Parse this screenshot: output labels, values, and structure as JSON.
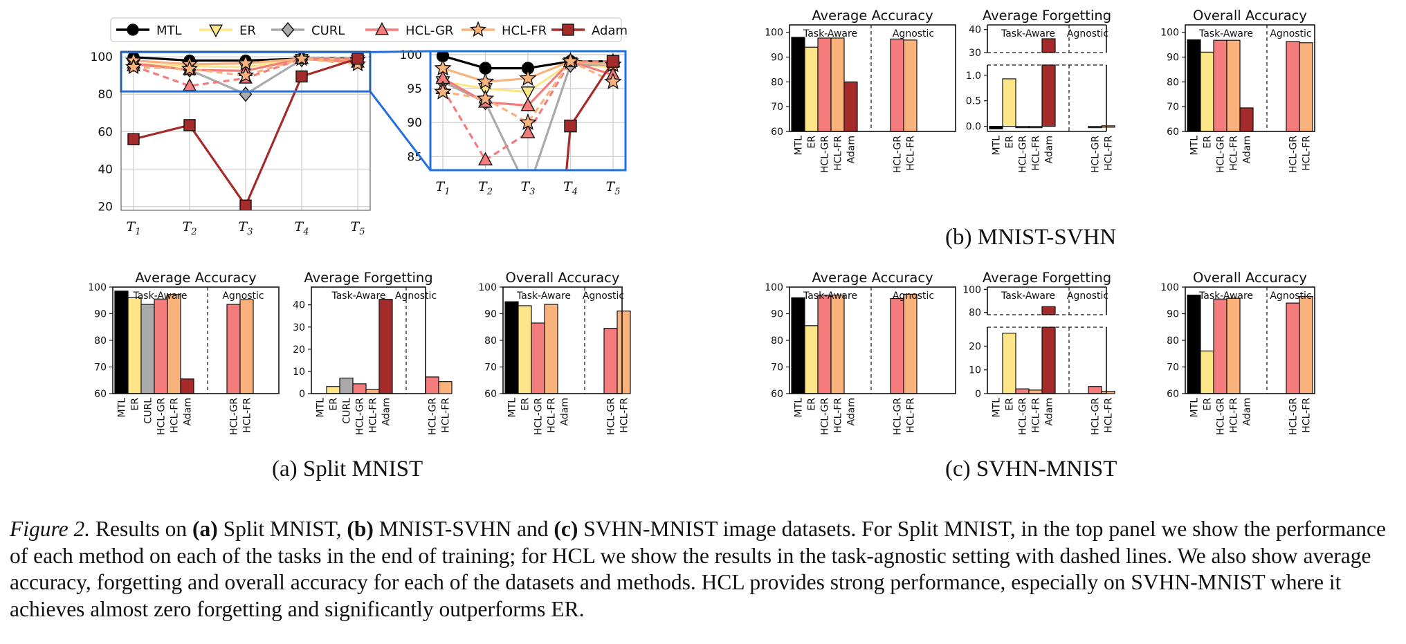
{
  "caption": {
    "fig_label": "Figure 2.",
    "s1": " Results on ",
    "a": "(a)",
    "s2": " Split MNIST, ",
    "b": "(b)",
    "s3": " MNIST-SVHN and ",
    "c": "(c)",
    "s4": " SVHN-MNIST image datasets. For Split MNIST, in the top panel we show the performance of each method on each of the tasks in the end of training; for HCL we show the results in the task-agnostic setting with dashed lines. We also show average accuracy, forgetting and overall accuracy for each of the datasets and methods. HCL provides strong performance, especially on SVHN-MNIST where it achieves almost zero forgetting and significantly outperforms ER."
  },
  "panel_labels": {
    "a": "(a) Split MNIST",
    "b": "(b) MNIST-SVHN",
    "c": "(c) SVHN-MNIST"
  },
  "colors": {
    "MTL": "#000000",
    "ER": "#fde68a",
    "CURL": "#aaaaaa",
    "HCL-GR": "#f47c7c",
    "HCL-FR": "#f9b27c",
    "Adam": "#a52a2a",
    "zoom_box": "#1f6fe0"
  },
  "chart_data": [
    {
      "id": "split-mnist-tasks",
      "type": "line",
      "legend": [
        "MTL",
        "ER",
        "CURL",
        "HCL-GR",
        "HCL-FR",
        "Adam"
      ],
      "legend_position": "top",
      "x": [
        "T1",
        "T2",
        "T3",
        "T4",
        "T5"
      ],
      "ylim": [
        18,
        103
      ],
      "yticks": [
        20,
        40,
        60,
        80,
        100
      ],
      "zoom_ylim": [
        83,
        100.5
      ],
      "zoom_yticks": [
        85,
        90,
        95,
        100
      ],
      "series": [
        {
          "name": "MTL",
          "values": [
            99.8,
            98,
            98,
            99,
            99
          ],
          "dashed": false,
          "marker": "circle"
        },
        {
          "name": "ER",
          "values": [
            96,
            95,
            94.5,
            98.8,
            98
          ],
          "dashed": false,
          "marker": "triangle-down"
        },
        {
          "name": "CURL",
          "values": [
            96,
            93,
            80,
            98.5,
            98.5
          ],
          "dashed": false,
          "marker": "diamond"
        },
        {
          "name": "HCL-GR",
          "values": [
            96.5,
            93,
            92.5,
            99,
            97
          ],
          "dashed": false,
          "marker": "triangle-up"
        },
        {
          "name": "HCL-FR",
          "values": [
            98,
            96,
            96.5,
            99,
            98.5
          ],
          "dashed": false,
          "marker": "star"
        },
        {
          "name": "HCL-GR",
          "values": [
            95,
            84.5,
            88.5,
            99,
            99
          ],
          "dashed": true,
          "marker": "triangle-up"
        },
        {
          "name": "HCL-FR",
          "values": [
            94.5,
            93.5,
            90,
            99,
            96
          ],
          "dashed": true,
          "marker": "star"
        },
        {
          "name": "Adam",
          "values": [
            56,
            63.5,
            20.5,
            89.5,
            99
          ],
          "dashed": false,
          "marker": "square"
        }
      ]
    },
    {
      "id": "split-mnist-avg-acc",
      "type": "bar",
      "title": "Average Accuracy",
      "ylim": [
        60,
        100
      ],
      "yticks": [
        60,
        70,
        80,
        90,
        100
      ],
      "groups": [
        {
          "label": "Task-Aware",
          "categories": [
            "MTL",
            "ER",
            "CURL",
            "HCL-GR",
            "HCL-FR",
            "Adam"
          ]
        },
        {
          "label": "Agnostic",
          "categories": [
            "HCL-GR",
            "HCL-FR"
          ]
        }
      ],
      "values": [
        [
          98.5,
          96,
          93.5,
          95.5,
          97.2,
          65.5
        ],
        [
          93.5,
          95.3
        ]
      ]
    },
    {
      "id": "split-mnist-avg-forg",
      "type": "bar",
      "title": "Average Forgetting",
      "ylim": [
        0,
        48
      ],
      "yticks": [
        0,
        10,
        20,
        30,
        40
      ],
      "groups": [
        {
          "label": "Task-Aware",
          "categories": [
            "MTL",
            "ER",
            "CURL",
            "HCL-GR",
            "HCL-FR",
            "Adam"
          ]
        },
        {
          "label": "Agnostic",
          "categories": [
            "HCL-GR",
            "HCL-FR"
          ]
        }
      ],
      "values": [
        [
          0,
          3.2,
          7,
          4.4,
          1.8,
          42.5
        ],
        [
          7.5,
          5.4
        ]
      ]
    },
    {
      "id": "split-mnist-overall-acc",
      "type": "bar",
      "title": "Overall Accuracy",
      "ylim": [
        60,
        100
      ],
      "yticks": [
        60,
        70,
        80,
        90,
        100
      ],
      "groups": [
        {
          "label": "Task-Aware",
          "categories": [
            "MTL",
            "ER",
            "HCL-GR",
            "HCL-FR",
            "Adam"
          ]
        },
        {
          "label": "Agnostic",
          "categories": [
            "HCL-GR",
            "HCL-FR"
          ]
        }
      ],
      "values": [
        [
          94.5,
          93,
          86.5,
          93.5,
          0
        ],
        [
          84.5,
          91
        ]
      ]
    },
    {
      "id": "mnist-svhn-avg-acc",
      "type": "bar",
      "title": "Average Accuracy",
      "ylim": [
        60,
        103
      ],
      "yticks": [
        60,
        70,
        80,
        90,
        100
      ],
      "groups": [
        {
          "label": "Task-Aware",
          "categories": [
            "MTL",
            "ER",
            "HCL-GR",
            "HCL-FR",
            "Adam"
          ]
        },
        {
          "label": "Agnostic",
          "categories": [
            "HCL-GR",
            "HCL-FR"
          ]
        }
      ],
      "values": [
        [
          98,
          94,
          97.7,
          97.7,
          80
        ],
        [
          97.3,
          96.9
        ]
      ]
    },
    {
      "id": "mnist-svhn-avg-forg",
      "type": "bar",
      "title": "Average Forgetting",
      "broken_axis": true,
      "lower_ylim": [
        -0.1,
        1.2
      ],
      "lower_yticks": [
        0.0,
        0.5,
        1.0
      ],
      "upper_ylim": [
        30,
        42
      ],
      "upper_yticks": [
        30,
        40
      ],
      "groups": [
        {
          "label": "Task-Aware",
          "categories": [
            "MTL",
            "ER",
            "HCL-GR",
            "HCL-FR",
            "Adam"
          ]
        },
        {
          "label": "Agnostic",
          "categories": [
            "HCL-GR",
            "HCL-FR"
          ]
        }
      ],
      "values": [
        [
          -0.05,
          0.93,
          -0.02,
          -0.02,
          36
        ],
        [
          -0.02,
          0.01
        ]
      ]
    },
    {
      "id": "mnist-svhn-overall-acc",
      "type": "bar",
      "title": "Overall Accuracy",
      "ylim": [
        60,
        103
      ],
      "yticks": [
        60,
        70,
        80,
        90,
        100
      ],
      "groups": [
        {
          "label": "Task-Aware",
          "categories": [
            "MTL",
            "ER",
            "HCL-GR",
            "HCL-FR",
            "Adam"
          ]
        },
        {
          "label": "Agnostic",
          "categories": [
            "HCL-GR",
            "HCL-FR"
          ]
        }
      ],
      "values": [
        [
          97,
          92,
          96.8,
          96.8,
          69.5
        ],
        [
          96.3,
          95.8
        ]
      ]
    },
    {
      "id": "svhn-mnist-avg-acc",
      "type": "bar",
      "title": "Average Accuracy",
      "ylim": [
        60,
        100
      ],
      "yticks": [
        60,
        70,
        80,
        90,
        100
      ],
      "groups": [
        {
          "label": "Task-Aware",
          "categories": [
            "MTL",
            "ER",
            "HCL-GR",
            "HCL-FR",
            "Adam"
          ]
        },
        {
          "label": "Agnostic",
          "categories": [
            "HCL-GR",
            "HCL-FR"
          ]
        }
      ],
      "values": [
        [
          96,
          85.5,
          97,
          97,
          0
        ],
        [
          95.7,
          97.3
        ]
      ]
    },
    {
      "id": "svhn-mnist-avg-forg",
      "type": "bar",
      "title": "Average Forgetting",
      "broken_axis": true,
      "lower_ylim": [
        0,
        28
      ],
      "lower_yticks": [
        0,
        10,
        20
      ],
      "upper_ylim": [
        78,
        102
      ],
      "upper_yticks": [
        80,
        100
      ],
      "groups": [
        {
          "label": "Task-Aware",
          "categories": [
            "MTL",
            "ER",
            "HCL-GR",
            "HCL-FR",
            "Adam"
          ]
        },
        {
          "label": "Agnostic",
          "categories": [
            "HCL-GR",
            "HCL-FR"
          ]
        }
      ],
      "values": [
        [
          0,
          25.5,
          2,
          1.5,
          85
        ],
        [
          3,
          1
        ]
      ]
    },
    {
      "id": "svhn-mnist-overall-acc",
      "type": "bar",
      "title": "Overall Accuracy",
      "ylim": [
        60,
        100
      ],
      "yticks": [
        60,
        70,
        80,
        90,
        100
      ],
      "groups": [
        {
          "label": "Task-Aware",
          "categories": [
            "MTL",
            "ER",
            "HCL-GR",
            "HCL-FR",
            "Adam"
          ]
        },
        {
          "label": "Agnostic",
          "categories": [
            "HCL-GR",
            "HCL-FR"
          ]
        }
      ],
      "values": [
        [
          97,
          76,
          95.5,
          95.8,
          0
        ],
        [
          94,
          96.5
        ]
      ]
    }
  ]
}
